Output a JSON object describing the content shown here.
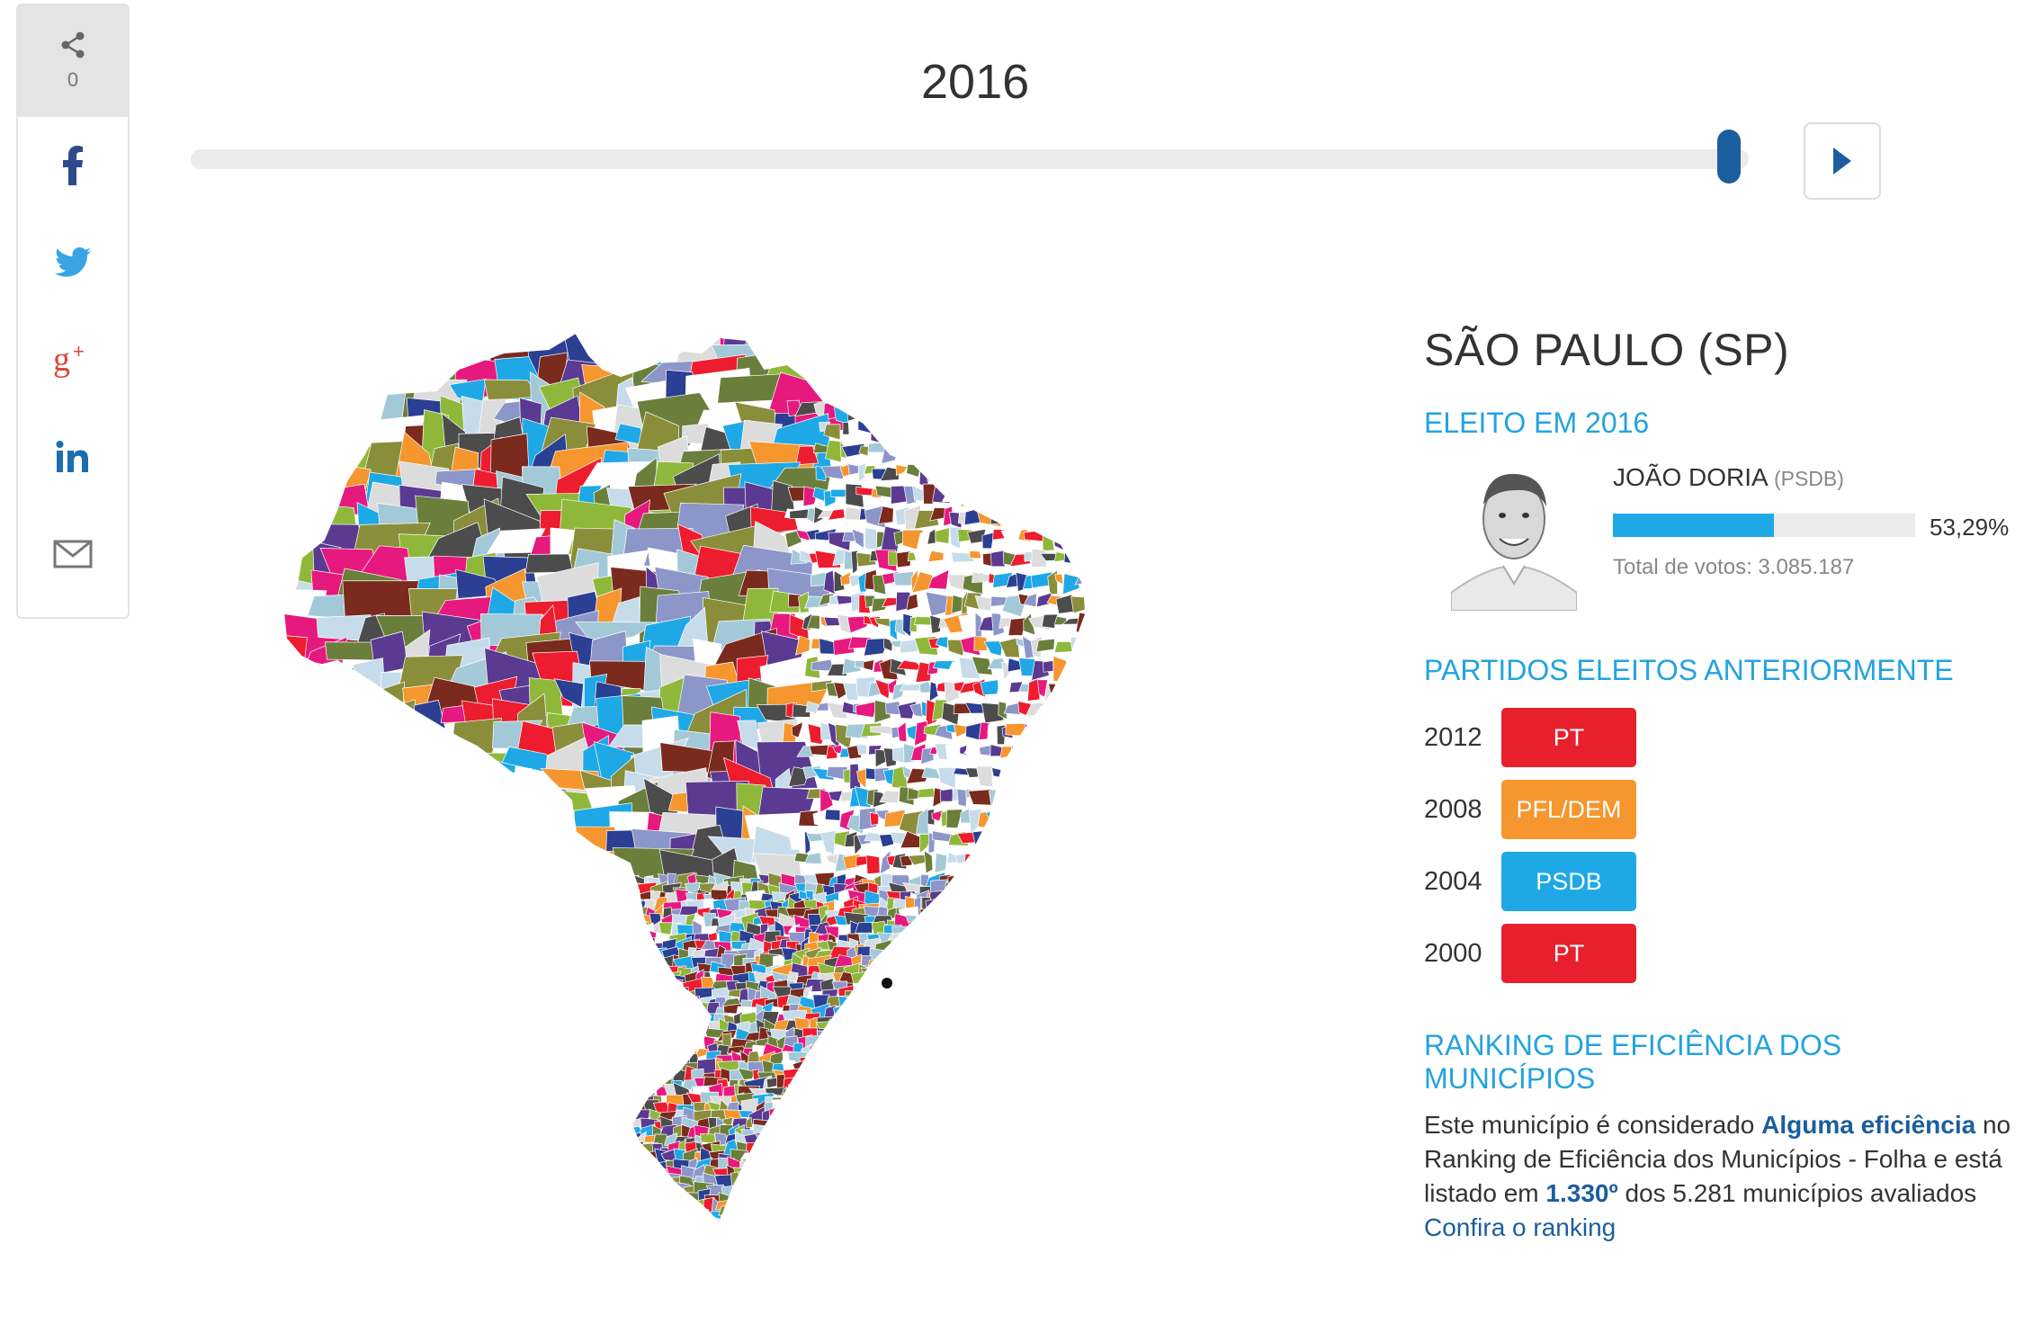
{
  "share": {
    "count": "0",
    "networks": [
      "facebook-icon",
      "twitter-icon",
      "googleplus-icon",
      "linkedin-icon",
      "mail-icon"
    ]
  },
  "timeline": {
    "year": "2016",
    "position": 1.0
  },
  "map": {
    "region": "Brasil",
    "colors": [
      "#1fa8e6",
      "#8fb83a",
      "#c7dceb",
      "#5b3a91",
      "#ed1c2e",
      "#f5962e",
      "#e6197e",
      "#2b3f93",
      "#8c96c8",
      "#a3c9d9",
      "#6a7f3b",
      "#ffffff",
      "#4c4c4c",
      "#8a8e3a",
      "#dcdcdc",
      "#7b2a1e"
    ]
  },
  "panel": {
    "city": "SÃO PAULO (SP)",
    "elected_title": "ELEITO EM 2016",
    "candidate": "JOÃO DORIA",
    "party": "(PSDB)",
    "vote_share": 0.5329,
    "percent_label": "53,29%",
    "total_votes": "Total de votos: 3.085.187",
    "previous_title": "PARTIDOS ELEITOS ANTERIORMENTE",
    "previous": [
      {
        "year": "2012",
        "party": "PT",
        "color": "#e8202d"
      },
      {
        "year": "2008",
        "party": "PFL/DEM",
        "color": "#f5962e"
      },
      {
        "year": "2004",
        "party": "PSDB",
        "color": "#1fa8e6"
      },
      {
        "year": "2000",
        "party": "PT",
        "color": "#e8202d"
      }
    ],
    "ranking_title": "RANKING DE EFICIÊNCIA DOS MUNICÍPIOS",
    "ranking_text_1": "Este município é considerado",
    "ranking_level": "Alguma eficiência",
    "ranking_text_2": "no Ranking de Eficiência dos Municípios - Folha e está listado em",
    "ranking_position": "1.330º",
    "ranking_text_3": "dos 5.281 municípios avaliados",
    "ranking_link": "Confira o ranking"
  }
}
